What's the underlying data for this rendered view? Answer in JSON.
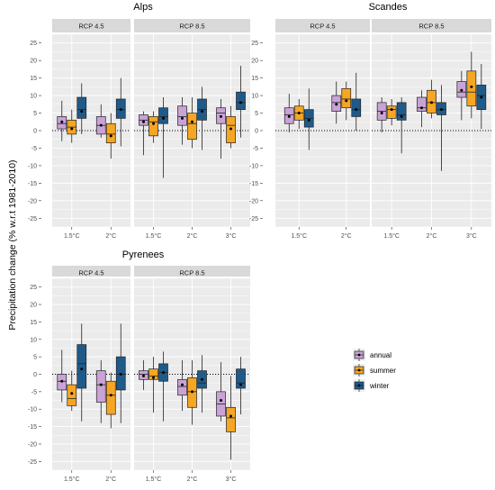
{
  "y_label": "Precipitation change (% w.r.t 1981-2010)",
  "legend": [
    {
      "key": "annual",
      "label": "annual",
      "color": "#c9a3d6"
    },
    {
      "key": "summer",
      "label": "summer",
      "color": "#f5a623"
    },
    {
      "key": "winter",
      "label": "winter",
      "color": "#1f5b8a"
    }
  ],
  "chart_data": [
    {
      "type": "boxplot",
      "title": "Alps",
      "ylim": [
        -27.5,
        27.5
      ],
      "yticks": [
        25,
        20,
        15,
        10,
        5,
        0,
        -5,
        -10,
        -15,
        -20,
        -25
      ],
      "panels": [
        {
          "label": "RCP 4.5",
          "categories": [
            "1.5°C",
            "2°C"
          ],
          "groups": [
            {
              "category": "1.5°C",
              "boxes": [
                {
                  "series": "annual",
                  "min": -3,
                  "q1": 0.5,
                  "median": 2,
                  "q3": 4,
                  "max": 8.5,
                  "mean": 2.5
                },
                {
                  "series": "summer",
                  "min": -3.5,
                  "q1": -1,
                  "median": 1,
                  "q3": 3,
                  "max": 6,
                  "mean": 0.5
                },
                {
                  "series": "winter",
                  "min": -1,
                  "q1": 3.5,
                  "median": 6,
                  "q3": 9.5,
                  "max": 13.5,
                  "mean": 5.5
                }
              ]
            },
            {
              "category": "2°C",
              "boxes": [
                {
                  "series": "annual",
                  "min": -2,
                  "q1": -1,
                  "median": 1.5,
                  "q3": 4,
                  "max": 7.5,
                  "mean": 1.5
                },
                {
                  "series": "summer",
                  "min": -8,
                  "q1": -3.5,
                  "median": -1,
                  "q3": 2,
                  "max": 5,
                  "mean": -1.5
                },
                {
                  "series": "winter",
                  "min": -4.5,
                  "q1": 3.5,
                  "median": 6,
                  "q3": 9,
                  "max": 15,
                  "mean": 6
                }
              ]
            }
          ]
        },
        {
          "label": "RCP 8.5",
          "categories": [
            "1.5°C",
            "2°C",
            "3°C"
          ],
          "groups": [
            {
              "category": "1.5°C",
              "boxes": [
                {
                  "series": "annual",
                  "min": -7,
                  "q1": 1.5,
                  "median": 3,
                  "q3": 4.5,
                  "max": 5.5,
                  "mean": 2.5
                },
                {
                  "series": "summer",
                  "min": -3.5,
                  "q1": -1.5,
                  "median": 2.5,
                  "q3": 4,
                  "max": 5.5,
                  "mean": 2
                },
                {
                  "series": "winter",
                  "min": -13.5,
                  "q1": 2,
                  "median": 4,
                  "q3": 6.5,
                  "max": 9.5,
                  "mean": 3.5
                }
              ]
            },
            {
              "category": "2°C",
              "boxes": [
                {
                  "series": "annual",
                  "min": -4,
                  "q1": 1.5,
                  "median": 4,
                  "q3": 7,
                  "max": 9.5,
                  "mean": 3.5
                },
                {
                  "series": "summer",
                  "min": -5,
                  "q1": -2.5,
                  "median": 2,
                  "q3": 5,
                  "max": 9.5,
                  "mean": 2.5
                },
                {
                  "series": "winter",
                  "min": -5.5,
                  "q1": 3,
                  "median": 6,
                  "q3": 9,
                  "max": 12.5,
                  "mean": 5.5
                }
              ]
            },
            {
              "category": "3°C",
              "boxes": [
                {
                  "series": "annual",
                  "min": -8,
                  "q1": 2,
                  "median": 5,
                  "q3": 6.5,
                  "max": 9,
                  "mean": 4
                },
                {
                  "series": "summer",
                  "min": -5,
                  "q1": -3.5,
                  "median": 1.5,
                  "q3": 4,
                  "max": 7,
                  "mean": 0.5
                },
                {
                  "series": "winter",
                  "min": -2,
                  "q1": 6,
                  "median": 8,
                  "q3": 11,
                  "max": 18.5,
                  "mean": 8
                }
              ]
            }
          ]
        }
      ]
    },
    {
      "type": "boxplot",
      "title": "Scandes",
      "ylim": [
        -27.5,
        27.5
      ],
      "yticks": [
        25,
        20,
        15,
        10,
        5,
        0,
        -5,
        -10,
        -15,
        -20,
        -25
      ],
      "panels": [
        {
          "label": "RCP 4.5",
          "categories": [
            "1.5°C",
            "2°C"
          ],
          "groups": [
            {
              "category": "1.5°C",
              "boxes": [
                {
                  "series": "annual",
                  "min": -0.5,
                  "q1": 2,
                  "median": 4.5,
                  "q3": 6.5,
                  "max": 10.5,
                  "mean": 4
                },
                {
                  "series": "summer",
                  "min": 0.5,
                  "q1": 3,
                  "median": 5,
                  "q3": 7,
                  "max": 9,
                  "mean": 5
                },
                {
                  "series": "winter",
                  "min": -5.5,
                  "q1": 1,
                  "median": 3.5,
                  "q3": 6,
                  "max": 12,
                  "mean": 3
                }
              ]
            },
            {
              "category": "2°C",
              "boxes": [
                {
                  "series": "annual",
                  "min": 2,
                  "q1": 5.5,
                  "median": 8,
                  "q3": 10,
                  "max": 14,
                  "mean": 7.5
                },
                {
                  "series": "summer",
                  "min": 3,
                  "q1": 6.5,
                  "median": 9,
                  "q3": 12,
                  "max": 14,
                  "mean": 8.5
                },
                {
                  "series": "winter",
                  "min": 0,
                  "q1": 4,
                  "median": 6,
                  "q3": 9,
                  "max": 16.5,
                  "mean": 6
                }
              ]
            }
          ]
        },
        {
          "label": "RCP 8.5",
          "categories": [
            "1.5°C",
            "2°C",
            "3°C"
          ],
          "groups": [
            {
              "category": "1.5°C",
              "boxes": [
                {
                  "series": "annual",
                  "min": -0.5,
                  "q1": 3,
                  "median": 5.5,
                  "q3": 8,
                  "max": 9.5,
                  "mean": 5
                },
                {
                  "series": "summer",
                  "min": 1.5,
                  "q1": 3.5,
                  "median": 6,
                  "q3": 7,
                  "max": 9,
                  "mean": 6
                },
                {
                  "series": "winter",
                  "min": -6.5,
                  "q1": 3,
                  "median": 4.5,
                  "q3": 8,
                  "max": 9.5,
                  "mean": 4
                }
              ]
            },
            {
              "category": "2°C",
              "boxes": [
                {
                  "series": "annual",
                  "min": 1,
                  "q1": 5.5,
                  "median": 6.5,
                  "q3": 9.5,
                  "max": 11.5,
                  "mean": 6.5
                },
                {
                  "series": "summer",
                  "min": 3.5,
                  "q1": 5,
                  "median": 8,
                  "q3": 11.5,
                  "max": 14.5,
                  "mean": 8
                },
                {
                  "series": "winter",
                  "min": -11.5,
                  "q1": 4.5,
                  "median": 6,
                  "q3": 8,
                  "max": 13,
                  "mean": 6
                }
              ]
            },
            {
              "category": "3°C",
              "boxes": [
                {
                  "series": "annual",
                  "min": 3,
                  "q1": 9.5,
                  "median": 11,
                  "q3": 14,
                  "max": 17,
                  "mean": 11.5
                },
                {
                  "series": "summer",
                  "min": 3.5,
                  "q1": 7,
                  "median": 11,
                  "q3": 17,
                  "max": 22.5,
                  "mean": 12.5
                },
                {
                  "series": "winter",
                  "min": 0.5,
                  "q1": 6,
                  "median": 10,
                  "q3": 13,
                  "max": 19,
                  "mean": 9.5
                }
              ]
            }
          ]
        }
      ]
    },
    {
      "type": "boxplot",
      "title": "Pyrenees",
      "ylim": [
        -27.5,
        27.5
      ],
      "yticks": [
        25,
        20,
        15,
        10,
        5,
        0,
        -5,
        -10,
        -15,
        -20,
        -25
      ],
      "panels": [
        {
          "label": "RCP 4.5",
          "categories": [
            "1.5°C",
            "2°C"
          ],
          "groups": [
            {
              "category": "1.5°C",
              "boxes": [
                {
                  "series": "annual",
                  "min": -8,
                  "q1": -4.5,
                  "median": -2,
                  "q3": 0,
                  "max": 7,
                  "mean": -2
                },
                {
                  "series": "summer",
                  "min": -10.5,
                  "q1": -9,
                  "median": -7,
                  "q3": -3,
                  "max": 1,
                  "mean": -5.5
                },
                {
                  "series": "winter",
                  "min": -13.5,
                  "q1": -4,
                  "median": 3,
                  "q3": 8.5,
                  "max": 14.5,
                  "mean": 1.5
                }
              ]
            },
            {
              "category": "2°C",
              "boxes": [
                {
                  "series": "annual",
                  "min": -14,
                  "q1": -8,
                  "median": -3,
                  "q3": 1,
                  "max": 4,
                  "mean": -3
                },
                {
                  "series": "summer",
                  "min": -15.5,
                  "q1": -11.5,
                  "median": -6,
                  "q3": -2,
                  "max": 0.5,
                  "mean": -6
                },
                {
                  "series": "winter",
                  "min": -14,
                  "q1": -4.5,
                  "median": 0,
                  "q3": 5,
                  "max": 14.5,
                  "mean": 0
                }
              ]
            }
          ]
        },
        {
          "label": "RCP 8.5",
          "categories": [
            "1.5°C",
            "2°C",
            "3°C"
          ],
          "groups": [
            {
              "category": "1.5°C",
              "boxes": [
                {
                  "series": "annual",
                  "min": -4.5,
                  "q1": -1.5,
                  "median": 0,
                  "q3": 1,
                  "max": 4,
                  "mean": -0.5
                },
                {
                  "series": "summer",
                  "min": -11,
                  "q1": -1.5,
                  "median": -0.5,
                  "q3": 1.5,
                  "max": 5,
                  "mean": -1
                },
                {
                  "series": "winter",
                  "min": -13.5,
                  "q1": -2,
                  "median": 0.5,
                  "q3": 3,
                  "max": 6.5,
                  "mean": 0.5
                }
              ]
            },
            {
              "category": "2°C",
              "boxes": [
                {
                  "series": "annual",
                  "min": -10.5,
                  "q1": -6,
                  "median": -3.5,
                  "q3": -1.5,
                  "max": 4,
                  "mean": -3
                },
                {
                  "series": "summer",
                  "min": -14.5,
                  "q1": -9.5,
                  "median": -5,
                  "q3": -1,
                  "max": 4,
                  "mean": -5
                },
                {
                  "series": "winter",
                  "min": -11,
                  "q1": -4,
                  "median": -2.5,
                  "q3": 1,
                  "max": 5.5,
                  "mean": -1.5
                }
              ]
            },
            {
              "category": "3°C",
              "boxes": [
                {
                  "series": "annual",
                  "min": -13.5,
                  "q1": -12,
                  "median": -8.5,
                  "q3": -5,
                  "max": 3.5,
                  "mean": -7.5
                },
                {
                  "series": "summer",
                  "min": -24.5,
                  "q1": -16.5,
                  "median": -12.5,
                  "q3": -9.5,
                  "max": -0.5,
                  "mean": -12
                },
                {
                  "series": "winter",
                  "min": -11.5,
                  "q1": -4,
                  "median": -2.5,
                  "q3": 1.5,
                  "max": 5,
                  "mean": -3
                }
              ]
            }
          ]
        }
      ]
    }
  ]
}
